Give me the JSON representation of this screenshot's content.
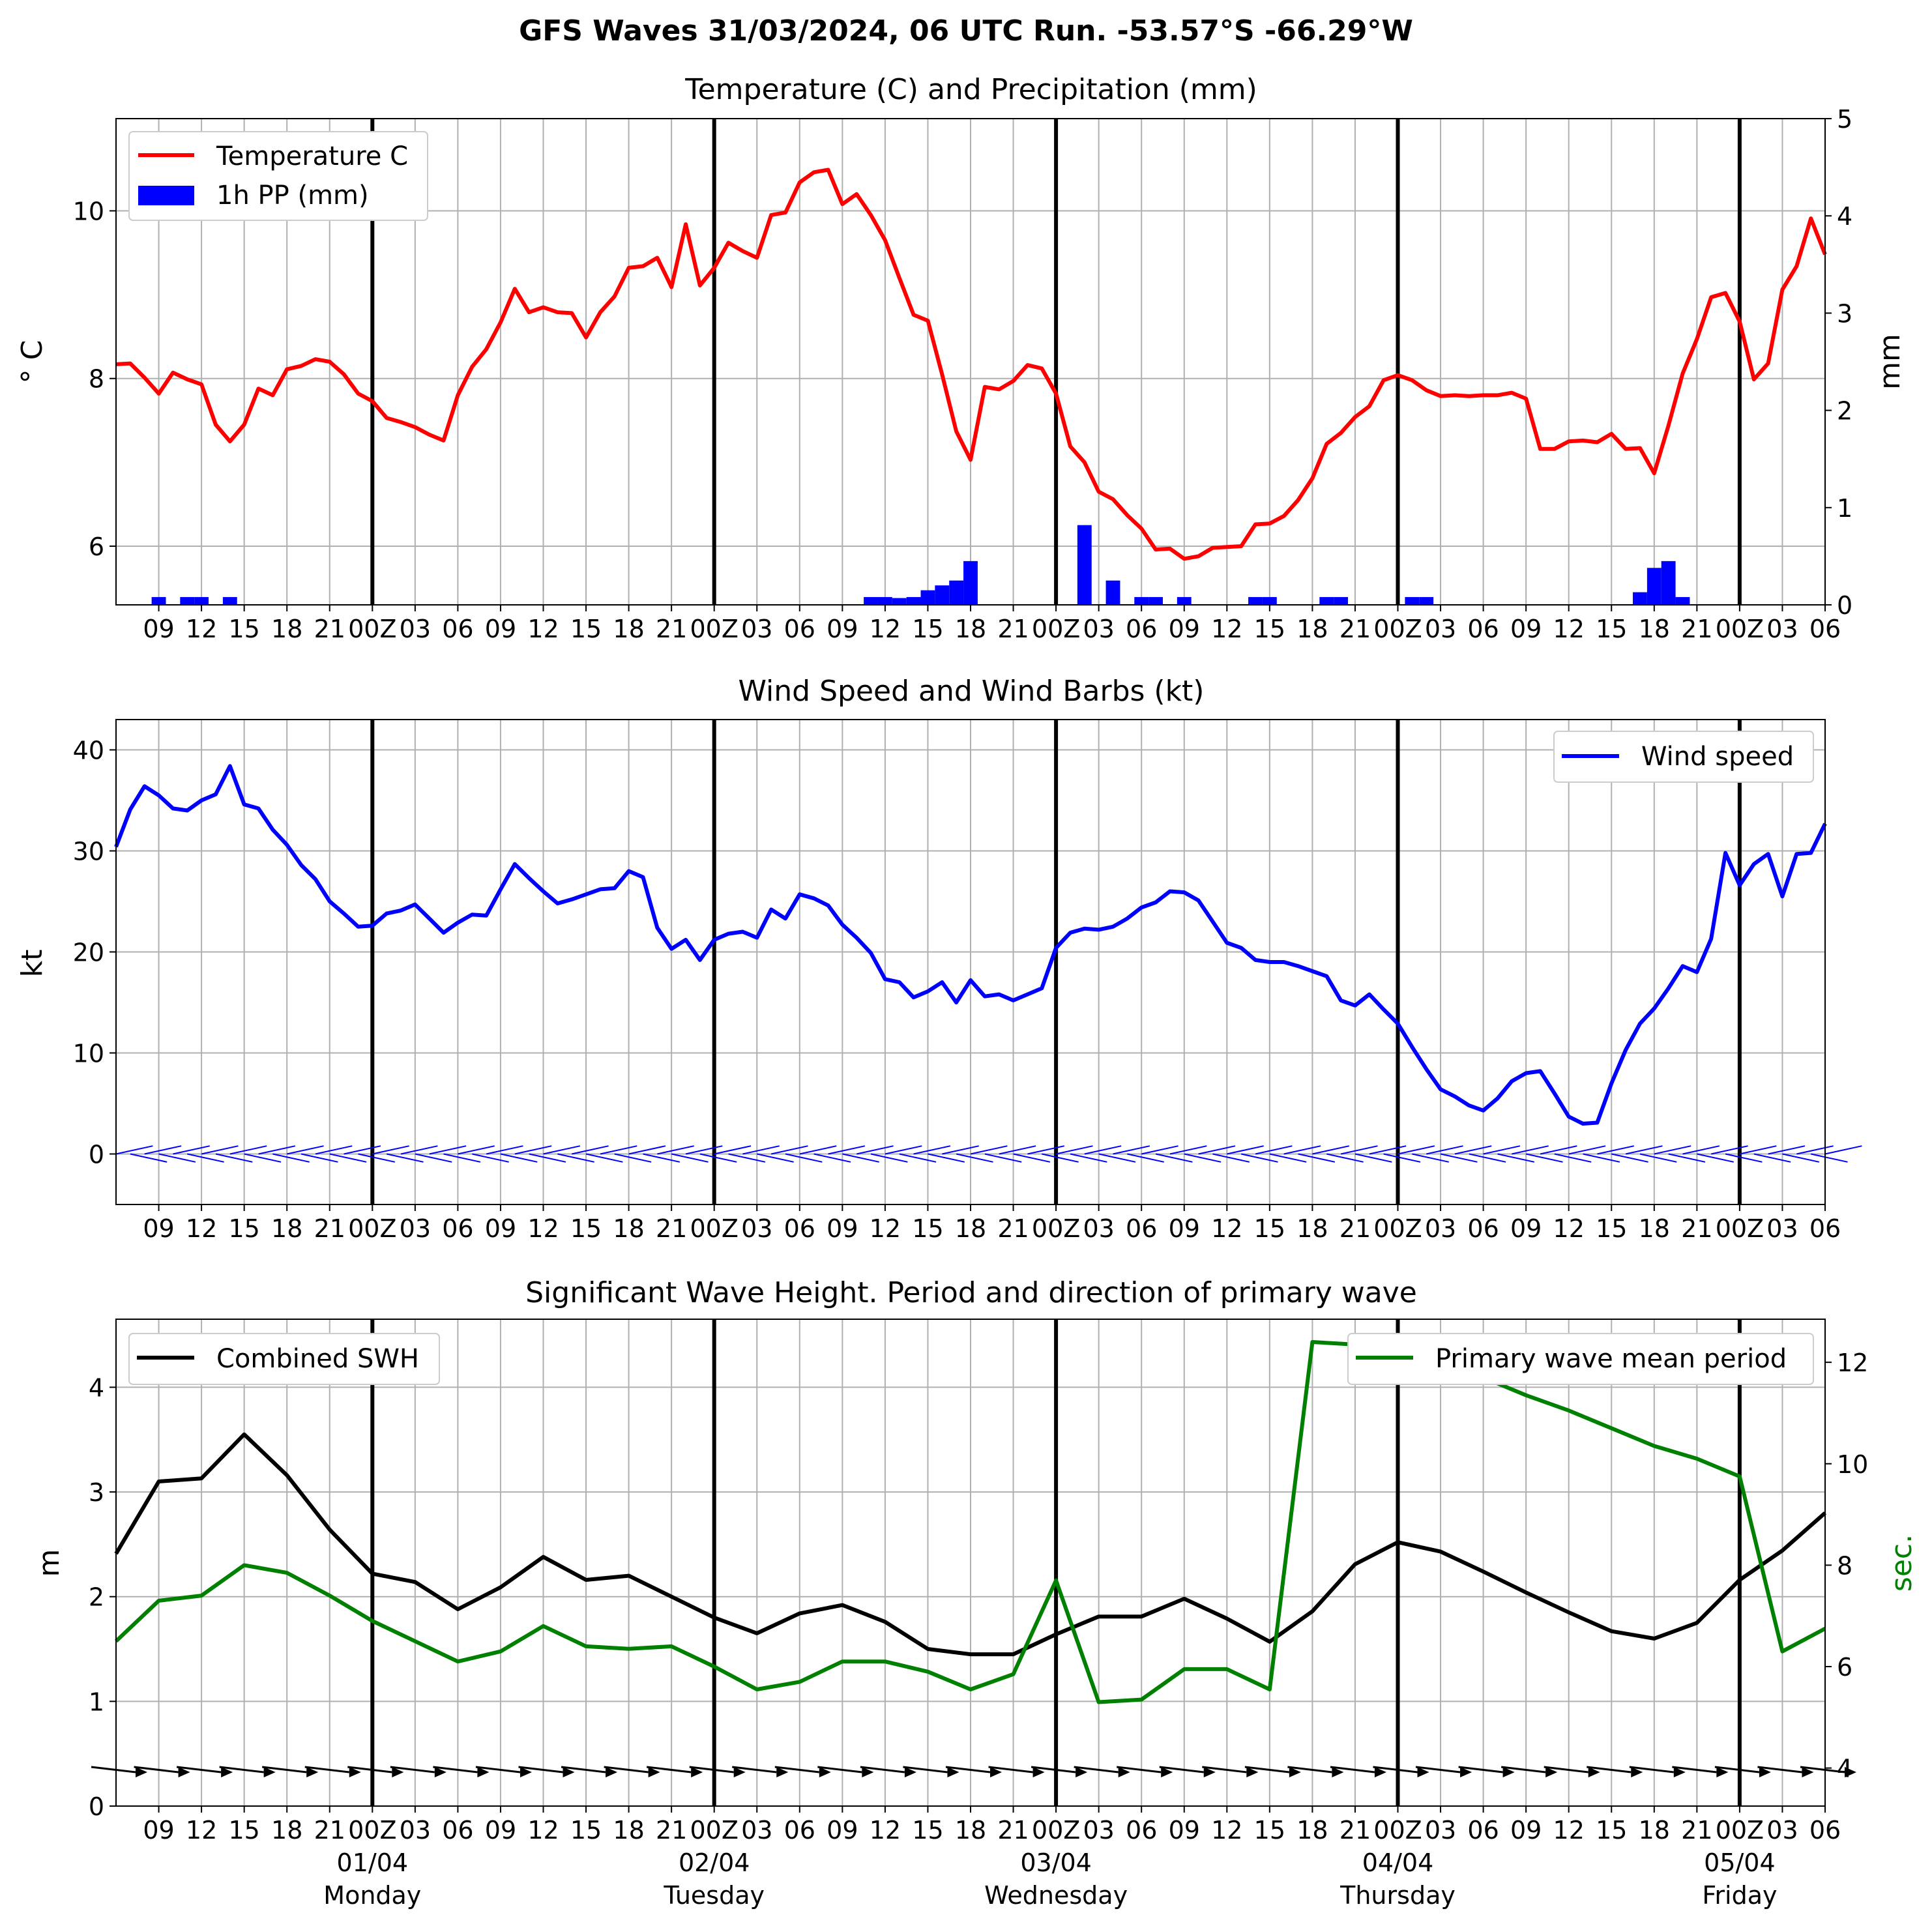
{
  "figure": {
    "suptitle": "GFS Waves 31/03/2024, 06 UTC Run. -53.57°S -66.29°W"
  },
  "colors": {
    "temperature": "#ff0000",
    "precipitation": "#0000ff",
    "wind": "#0000ff",
    "swh": "#000000",
    "period": "#008000",
    "grid": "#b0b0b0",
    "day_line": "#000000"
  },
  "time_axis": {
    "start_hour": 6,
    "end_hour": 126,
    "tick_labels": [
      "09",
      "12",
      "15",
      "18",
      "21",
      "00Z",
      "03",
      "06",
      "09",
      "12",
      "15",
      "18",
      "21",
      "00Z",
      "03",
      "06",
      "09",
      "12",
      "15",
      "18",
      "21",
      "00Z",
      "03",
      "06",
      "09",
      "12",
      "15",
      "18",
      "21",
      "00Z",
      "03",
      "06",
      "09",
      "12",
      "15",
      "18",
      "21",
      "00Z",
      "03",
      "06"
    ],
    "day_lines": [
      24,
      48,
      72,
      96,
      120
    ],
    "day_labels": [
      {
        "date": "01/04",
        "day": "Monday"
      },
      {
        "date": "02/04",
        "day": "Tuesday"
      },
      {
        "date": "03/04",
        "day": "Wednesday"
      },
      {
        "date": "04/04",
        "day": "Thursday"
      },
      {
        "date": "05/04",
        "day": "Friday"
      }
    ]
  },
  "chart_data": [
    {
      "type": "line",
      "title": "Temperature (C) and Precipitation (mm)",
      "ylabel": "° C",
      "ylabel_right": "mm",
      "ylim": [
        5.3,
        11.1
      ],
      "ylim_right": [
        0,
        5
      ],
      "yticks": [
        6,
        8,
        10
      ],
      "yticks_right": [
        0,
        1,
        2,
        3,
        4,
        5
      ],
      "legend": [
        "Temperature C",
        "1h PP (mm)"
      ],
      "legend_position": "upper-left",
      "series": [
        {
          "name": "Temperature C",
          "x": [
            6,
            7,
            8,
            9,
            10,
            11,
            12,
            13,
            14,
            15,
            16,
            17,
            18,
            19,
            20,
            21,
            22,
            23,
            24,
            25,
            26,
            27,
            28,
            29,
            30,
            31,
            32,
            33,
            34,
            35,
            36,
            37,
            38,
            39,
            40,
            41,
            42,
            43,
            44,
            45,
            46,
            47,
            48,
            49,
            50,
            51,
            52,
            53,
            54,
            55,
            56,
            57,
            58,
            59,
            60,
            61,
            62,
            63,
            64,
            65,
            66,
            67,
            68,
            69,
            70,
            71,
            72,
            73,
            74,
            75,
            76,
            77,
            78,
            79,
            80,
            81,
            82,
            83,
            84,
            85,
            86,
            87,
            88,
            89,
            90,
            91,
            92,
            93,
            94,
            95,
            96,
            97,
            98,
            99,
            100,
            101,
            102,
            103,
            104,
            105,
            106,
            107,
            108,
            109,
            110,
            111,
            112,
            113,
            114,
            115,
            116,
            117,
            118,
            119,
            120,
            121,
            122,
            123,
            124,
            125,
            126
          ],
          "values": [
            8.17,
            8.18,
            8.01,
            7.82,
            8.07,
            7.99,
            7.93,
            7.45,
            7.25,
            7.45,
            7.88,
            7.8,
            8.11,
            8.15,
            8.23,
            8.2,
            8.05,
            7.82,
            7.73,
            7.53,
            7.48,
            7.42,
            7.33,
            7.26,
            7.8,
            8.14,
            8.35,
            8.67,
            9.07,
            8.79,
            8.85,
            8.79,
            8.78,
            8.49,
            8.79,
            8.98,
            9.32,
            9.34,
            9.44,
            9.09,
            9.84,
            9.11,
            9.32,
            9.62,
            9.52,
            9.44,
            9.95,
            9.98,
            10.34,
            10.46,
            10.49,
            10.08,
            10.2,
            9.95,
            9.65,
            9.2,
            8.76,
            8.69,
            8.05,
            7.37,
            7.03,
            7.9,
            7.87,
            7.97,
            8.16,
            8.12,
            7.82,
            7.19,
            7.0,
            6.65,
            6.56,
            6.37,
            6.21,
            5.96,
            5.97,
            5.85,
            5.88,
            5.98,
            5.99,
            6.0,
            6.26,
            6.27,
            6.36,
            6.55,
            6.81,
            7.22,
            7.35,
            7.54,
            7.67,
            7.98,
            8.04,
            7.98,
            7.86,
            7.79,
            7.8,
            7.79,
            7.8,
            7.8,
            7.83,
            7.76,
            7.16,
            7.16,
            7.25,
            7.26,
            7.24,
            7.34,
            7.16,
            7.17,
            6.87,
            7.44,
            8.06,
            8.47,
            8.97,
            9.02,
            8.68,
            7.99,
            8.18,
            9.06,
            9.34,
            9.91,
            9.48
          ]
        },
        {
          "name": "1h PP (mm)",
          "type": "bar",
          "x": [
            9,
            11,
            12,
            14,
            59,
            60,
            61,
            62,
            63,
            64,
            65,
            66,
            74,
            76,
            78,
            79,
            81,
            86,
            87,
            91,
            92,
            97,
            98,
            113,
            114,
            115,
            116
          ],
          "values": [
            0.08,
            0.08,
            0.08,
            0.08,
            0.08,
            0.08,
            0.07,
            0.08,
            0.15,
            0.2,
            0.25,
            0.45,
            0.82,
            0.25,
            0.08,
            0.08,
            0.08,
            0.08,
            0.08,
            0.08,
            0.08,
            0.08,
            0.08,
            0.13,
            0.38,
            0.45,
            0.08
          ]
        }
      ]
    },
    {
      "type": "line",
      "title": "Wind Speed and Wind Barbs (kt)",
      "ylabel": "kt",
      "ylim": [
        -5,
        43
      ],
      "yticks": [
        0,
        10,
        20,
        30,
        40
      ],
      "legend": [
        "Wind speed"
      ],
      "legend_position": "upper-right",
      "series": [
        {
          "name": "Wind speed",
          "x": [
            6,
            7,
            8,
            9,
            10,
            11,
            12,
            13,
            14,
            15,
            16,
            17,
            18,
            19,
            20,
            21,
            22,
            23,
            24,
            25,
            26,
            27,
            28,
            29,
            30,
            31,
            32,
            33,
            34,
            35,
            36,
            37,
            38,
            39,
            40,
            41,
            42,
            43,
            44,
            45,
            46,
            47,
            48,
            49,
            50,
            51,
            52,
            53,
            54,
            55,
            56,
            57,
            58,
            59,
            60,
            61,
            62,
            63,
            64,
            65,
            66,
            67,
            68,
            69,
            70,
            71,
            72,
            73,
            74,
            75,
            76,
            77,
            78,
            79,
            80,
            81,
            82,
            83,
            84,
            85,
            86,
            87,
            88,
            89,
            90,
            91,
            92,
            93,
            94,
            95,
            96,
            97,
            98,
            99,
            100,
            101,
            102,
            103,
            104,
            105,
            106,
            107,
            108,
            109,
            110,
            111,
            112,
            113,
            114,
            115,
            116,
            117,
            118,
            119,
            120,
            121,
            122,
            123,
            124,
            125,
            126
          ],
          "values": [
            30.4,
            34.1,
            36.4,
            35.5,
            34.2,
            34.0,
            35.0,
            35.6,
            38.4,
            34.6,
            34.2,
            32.1,
            30.6,
            28.6,
            27.2,
            25.0,
            23.8,
            22.5,
            22.6,
            23.8,
            24.1,
            24.7,
            23.3,
            21.9,
            22.9,
            23.7,
            23.6,
            26.2,
            28.7,
            27.3,
            26.0,
            24.8,
            25.2,
            25.7,
            26.2,
            26.3,
            28.0,
            27.4,
            22.4,
            20.3,
            21.2,
            19.2,
            21.2,
            21.8,
            22.0,
            21.4,
            24.2,
            23.3,
            25.7,
            25.3,
            24.6,
            22.7,
            21.4,
            19.9,
            17.3,
            17.0,
            15.5,
            16.1,
            17.0,
            15.0,
            17.2,
            15.6,
            15.8,
            15.2,
            15.8,
            16.4,
            20.4,
            21.9,
            22.3,
            22.2,
            22.5,
            23.3,
            24.4,
            24.9,
            26.0,
            25.9,
            25.1,
            23.0,
            20.9,
            20.4,
            19.2,
            19.0,
            19.0,
            18.6,
            18.1,
            17.6,
            15.2,
            14.7,
            15.8,
            14.3,
            12.9,
            10.6,
            8.4,
            6.4,
            5.7,
            4.8,
            4.3,
            5.5,
            7.2,
            8.0,
            8.2,
            6.0,
            3.7,
            3.0,
            3.1,
            7.0,
            10.3,
            12.9,
            14.4,
            16.4,
            18.6,
            18.0,
            21.3,
            29.8,
            26.6,
            28.7,
            29.7,
            25.5,
            29.7,
            29.8,
            32.7
          ]
        }
      ]
    },
    {
      "type": "line",
      "title": "Significant Wave Height. Period and direction of primary wave",
      "ylabel": "m",
      "ylabel_right": "sec.",
      "ylim": [
        0,
        4.65
      ],
      "ylim_right": [
        3.25,
        12.85
      ],
      "yticks": [
        0,
        1,
        2,
        3,
        4
      ],
      "yticks_right": [
        4,
        6,
        8,
        10,
        12
      ],
      "legend": [
        "Combined SWH",
        "Primary wave mean period"
      ],
      "legend_position": "upper-left / upper-right",
      "series": [
        {
          "name": "Combined SWH",
          "x": [
            6,
            9,
            12,
            15,
            18,
            21,
            24,
            27,
            30,
            33,
            36,
            39,
            42,
            45,
            48,
            51,
            54,
            57,
            60,
            63,
            66,
            69,
            72,
            75,
            78,
            81,
            84,
            87,
            90,
            93,
            96,
            99,
            102,
            105,
            108,
            111,
            114,
            117,
            120,
            123,
            126
          ],
          "values": [
            2.41,
            3.1,
            3.13,
            3.55,
            3.16,
            2.64,
            2.22,
            2.14,
            1.88,
            2.09,
            2.38,
            2.16,
            2.2,
            2.0,
            1.8,
            1.65,
            1.84,
            1.92,
            1.76,
            1.5,
            1.45,
            1.45,
            1.64,
            1.81,
            1.81,
            1.98,
            1.79,
            1.57,
            1.86,
            2.31,
            2.52,
            2.43,
            2.24,
            2.04,
            1.85,
            1.67,
            1.6,
            1.75,
            2.16,
            2.44,
            2.8
          ]
        },
        {
          "name": "Primary wave mean period",
          "x": [
            6,
            9,
            12,
            15,
            18,
            21,
            24,
            27,
            30,
            33,
            36,
            39,
            42,
            45,
            48,
            51,
            54,
            57,
            60,
            63,
            66,
            69,
            72,
            75,
            78,
            81,
            84,
            87,
            90,
            93,
            96,
            99,
            102,
            105,
            108,
            111,
            114,
            117,
            120,
            123,
            126
          ],
          "values": [
            6.5,
            7.3,
            7.4,
            8.0,
            7.85,
            7.4,
            6.9,
            6.5,
            6.1,
            6.3,
            6.8,
            6.4,
            6.35,
            6.4,
            6.0,
            5.55,
            5.7,
            6.1,
            6.1,
            5.9,
            5.55,
            5.85,
            7.7,
            5.3,
            5.35,
            5.95,
            5.95,
            5.55,
            12.4,
            12.35,
            12.0,
            11.9,
            11.7,
            11.35,
            11.05,
            10.7,
            10.35,
            10.1,
            9.75,
            6.3,
            6.75
          ]
        }
      ]
    }
  ]
}
